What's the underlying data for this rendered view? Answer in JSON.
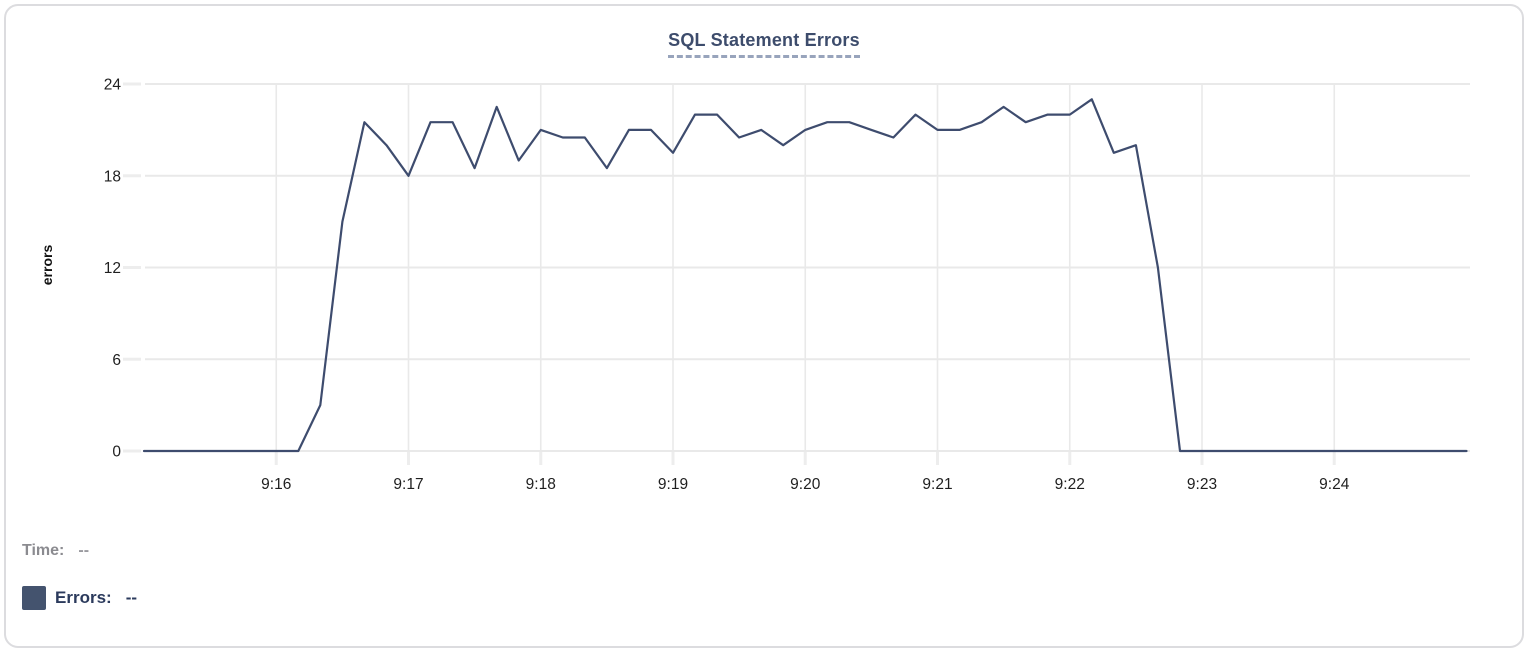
{
  "chart": {
    "title": "SQL Statement Errors",
    "y_axis_title": "errors"
  },
  "tooltip": {
    "time_label": "Time:",
    "time_value": "--",
    "errors_label": "Errors:",
    "errors_value": "--",
    "swatch_color": "#44536e"
  },
  "colors": {
    "line": "#3e4c6e",
    "gridline": "#e9e9e9",
    "tick_mark": "#ededed",
    "tick_text": "#1f1f1f",
    "title_text": "#3d4c6c",
    "title_underline": "#98a4bc",
    "card_border": "#dcdcdf"
  },
  "chart_data": {
    "type": "line",
    "title": "SQL Statement Errors",
    "xlabel": "",
    "ylabel": "errors",
    "series_name": "Errors",
    "grid": true,
    "ylim": [
      0,
      24
    ],
    "y_ticks": [
      0,
      6,
      12,
      18,
      24
    ],
    "x_ticks": [
      "9:16",
      "9:17",
      "9:18",
      "9:19",
      "9:20",
      "9:21",
      "9:22",
      "9:23",
      "9:24"
    ],
    "x_range": [
      "9:15:00",
      "9:25:00"
    ],
    "sample_interval_seconds": 10,
    "times": [
      "9:15:00",
      "9:15:10",
      "9:15:20",
      "9:15:30",
      "9:15:40",
      "9:15:50",
      "9:16:00",
      "9:16:10",
      "9:16:20",
      "9:16:30",
      "9:16:40",
      "9:16:50",
      "9:17:00",
      "9:17:10",
      "9:17:20",
      "9:17:30",
      "9:17:40",
      "9:17:50",
      "9:18:00",
      "9:18:10",
      "9:18:20",
      "9:18:30",
      "9:18:40",
      "9:18:50",
      "9:19:00",
      "9:19:10",
      "9:19:20",
      "9:19:30",
      "9:19:40",
      "9:19:50",
      "9:20:00",
      "9:20:10",
      "9:20:20",
      "9:20:30",
      "9:20:40",
      "9:20:50",
      "9:21:00",
      "9:21:10",
      "9:21:20",
      "9:21:30",
      "9:21:40",
      "9:21:50",
      "9:22:00",
      "9:22:10",
      "9:22:20",
      "9:22:30",
      "9:22:40",
      "9:22:50",
      "9:23:00",
      "9:23:10",
      "9:23:20",
      "9:23:30",
      "9:23:40",
      "9:23:50",
      "9:24:00",
      "9:24:10",
      "9:24:20",
      "9:24:30",
      "9:24:40",
      "9:24:50",
      "9:25:00"
    ],
    "values": [
      0,
      0,
      0,
      0,
      0,
      0,
      0,
      0,
      3,
      15,
      21.5,
      20,
      18,
      21.5,
      21.5,
      18.5,
      22.5,
      19,
      21,
      20.5,
      20.5,
      18.5,
      21,
      21,
      19.5,
      22,
      22,
      20.5,
      21,
      20,
      21,
      21.5,
      21.5,
      21,
      20.5,
      22,
      21,
      21,
      21.5,
      22.5,
      21.5,
      22,
      22,
      23,
      19.5,
      20,
      12,
      0,
      0,
      0,
      0,
      0,
      0,
      0,
      0,
      0,
      0,
      0,
      0,
      0,
      0
    ]
  }
}
